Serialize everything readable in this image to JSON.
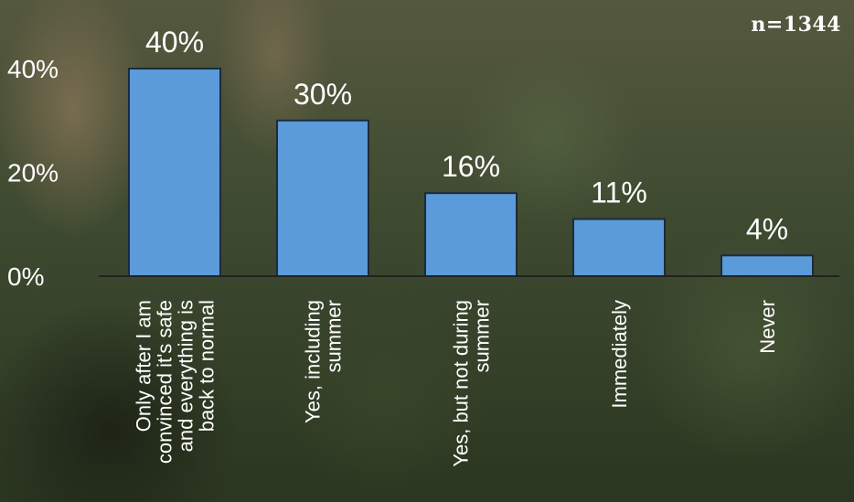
{
  "sample_size": "n=1344",
  "chart_data": {
    "type": "bar",
    "title": "",
    "xlabel": "",
    "ylabel": "",
    "ylim": [
      0,
      40
    ],
    "yticks": [
      {
        "value": 0,
        "label": "0%"
      },
      {
        "value": 20,
        "label": "20%"
      },
      {
        "value": 40,
        "label": "40%"
      }
    ],
    "categories": [
      [
        "Only after I am",
        "convinced it's safe",
        "and everything is",
        "back to normal"
      ],
      [
        "Yes, including",
        "summer"
      ],
      [
        "Yes, but not during",
        "summer"
      ],
      [
        "Immediately"
      ],
      [
        "Never"
      ]
    ],
    "values": [
      40,
      30,
      16,
      11,
      4
    ],
    "data_labels": [
      "40%",
      "30%",
      "16%",
      "11%",
      "4%"
    ],
    "grid": false,
    "colors": {
      "bar": "#5b9bd9",
      "text": "#ffffff"
    }
  }
}
